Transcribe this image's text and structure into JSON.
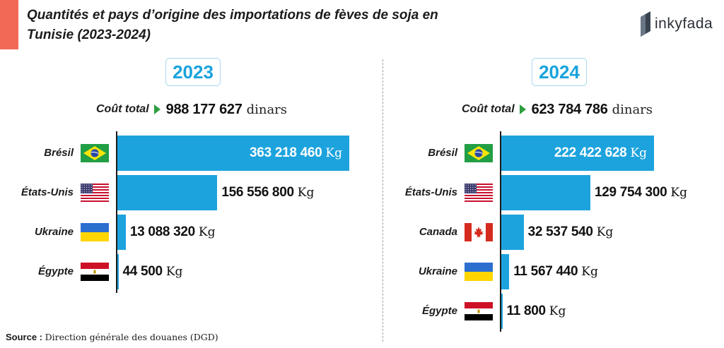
{
  "title": "Quantités et pays d’origine des importations de fèves de soja en Tunisie (2023-2024)",
  "logo": {
    "text": "inkyfada",
    "icon": "inkyfada-logo-icon"
  },
  "total_label": "Coût total",
  "currency": "dinars",
  "unit": "Kg",
  "source": {
    "label": "Source :",
    "text": "Direction générale des douanes (DGD)"
  },
  "colors": {
    "bar": "#1ca3dd",
    "accent": "#f26a55",
    "arrow": "#2f9e3f",
    "year": "#1aa3dc"
  },
  "chart_data": [
    {
      "type": "bar",
      "orientation": "horizontal",
      "title": "2023",
      "total_cost": "988 177 627",
      "categories": [
        "Brésil",
        "États-Unis",
        "Ukraine",
        "Égypte"
      ],
      "flags": [
        "brazil-flag-icon",
        "usa-flag-icon",
        "ukraine-flag-icon",
        "egypt-flag-icon"
      ],
      "values": [
        363218460,
        156556800,
        13088320,
        44500
      ],
      "labels": [
        "363 218 460",
        "156 556 800",
        "13 088 320",
        "44 500"
      ],
      "unit": "Kg"
    },
    {
      "type": "bar",
      "orientation": "horizontal",
      "title": "2024",
      "total_cost": "623 784 786",
      "categories": [
        "Brésil",
        "États-Unis",
        "Canada",
        "Ukraine",
        "Égypte"
      ],
      "flags": [
        "brazil-flag-icon",
        "usa-flag-icon",
        "canada-flag-icon",
        "ukraine-flag-icon",
        "egypt-flag-icon"
      ],
      "values": [
        222422628,
        129754300,
        32537540,
        11567440,
        11800
      ],
      "labels": [
        "222 422 628",
        "129 754 300",
        "32 537 540",
        "11 567 440",
        "11 800"
      ],
      "unit": "Kg"
    }
  ]
}
